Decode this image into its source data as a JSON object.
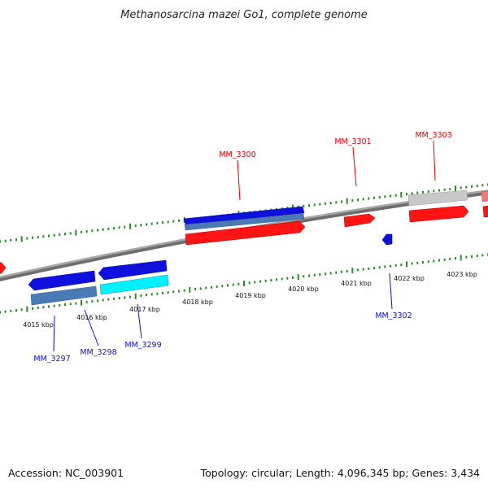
{
  "header": {
    "title": "Methanosarcina mazei Go1, complete genome"
  },
  "footer": {
    "accession": "Accession: NC_003901",
    "summary": "Topology: circular; Length: 4,096,345 bp; Genes: 3,434"
  },
  "scale": {
    "unit": "kbp",
    "labels": [
      "4015 kbp",
      "4016 kbp",
      "4017 kbp",
      "4018 kbp",
      "4019 kbp",
      "4020 kbp",
      "4021 kbp",
      "4022 kbp",
      "4023 kbp"
    ]
  },
  "gene_labels": {
    "mm3297": "MM_3297",
    "mm3298": "MM_3298",
    "mm3299": "MM_3299",
    "mm3300": "MM_3300",
    "mm3301": "MM_3301",
    "mm3302": "MM_3302",
    "mm3303": "MM_3303"
  },
  "colors": {
    "backbone": "#8a8a8a",
    "tick": "#2a8a2a",
    "plus_label": "#e00000",
    "minus_label": "#1010c0",
    "gene_red": "#ff1010",
    "gene_blue": "#1414e6",
    "gene_cyan": "#00ffff",
    "gene_steel": "#4a7ab5",
    "gene_grey": "#c8c8c8",
    "gene_pink": "#f07878"
  }
}
